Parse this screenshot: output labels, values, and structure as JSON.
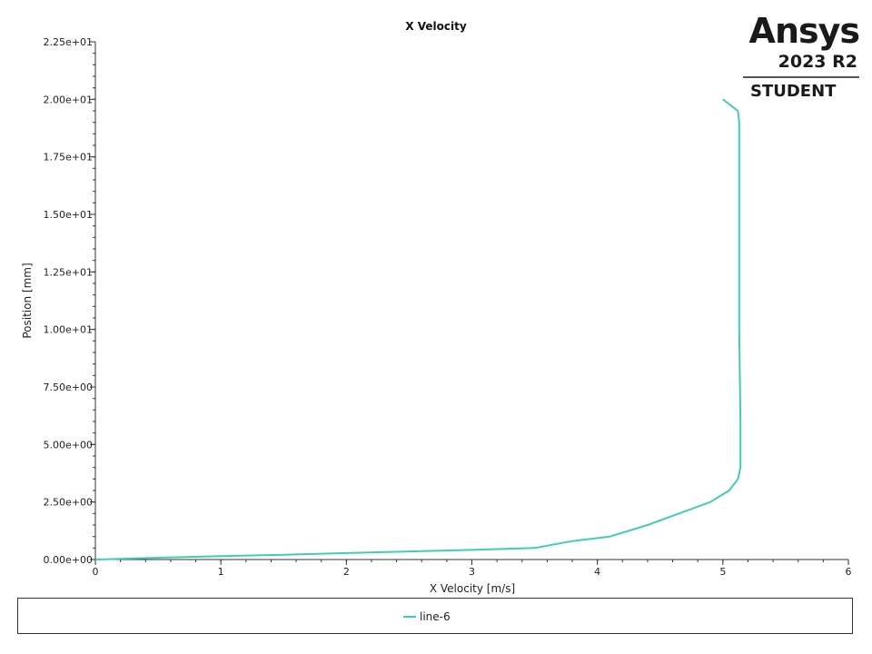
{
  "logo": {
    "word": "Ansys",
    "version": "2023 R2",
    "edition": "STUDENT"
  },
  "chart_data": {
    "type": "line",
    "title": "X Velocity",
    "xlabel": "X Velocity [m/s]",
    "ylabel": "Position [mm]",
    "xlim": [
      0,
      6
    ],
    "ylim": [
      0,
      22.5
    ],
    "x_ticks": [
      0,
      1,
      2,
      3,
      4,
      5,
      6
    ],
    "x_tick_labels": [
      "0",
      "1",
      "2",
      "3",
      "4",
      "5",
      "6"
    ],
    "y_ticks": [
      0,
      2.5,
      5,
      7.5,
      10,
      12.5,
      15,
      17.5,
      20,
      22.5
    ],
    "y_tick_labels": [
      "0.00e+00",
      "2.50e+00",
      "5.00e+00",
      "7.50e+00",
      "1.00e+01",
      "1.25e+01",
      "1.50e+01",
      "1.75e+01",
      "2.00e+01",
      "2.25e+01"
    ],
    "grid": false,
    "legend_position": "bottom",
    "series": [
      {
        "name": "line-6",
        "color": "#3fcfb0",
        "x": [
          0,
          0.5,
          1.0,
          1.5,
          2.0,
          2.5,
          3.0,
          3.5,
          3.8,
          4.1,
          4.4,
          4.65,
          4.9,
          5.05,
          5.12,
          5.14,
          5.14,
          5.13,
          5.13,
          5.13,
          5.12,
          5.0
        ],
        "y": [
          0,
          0.08,
          0.15,
          0.21,
          0.28,
          0.35,
          0.42,
          0.5,
          0.8,
          1.0,
          1.5,
          2.0,
          2.5,
          3.0,
          3.5,
          4.0,
          6.0,
          10.0,
          15.0,
          19.0,
          19.5,
          20.0
        ]
      }
    ]
  }
}
